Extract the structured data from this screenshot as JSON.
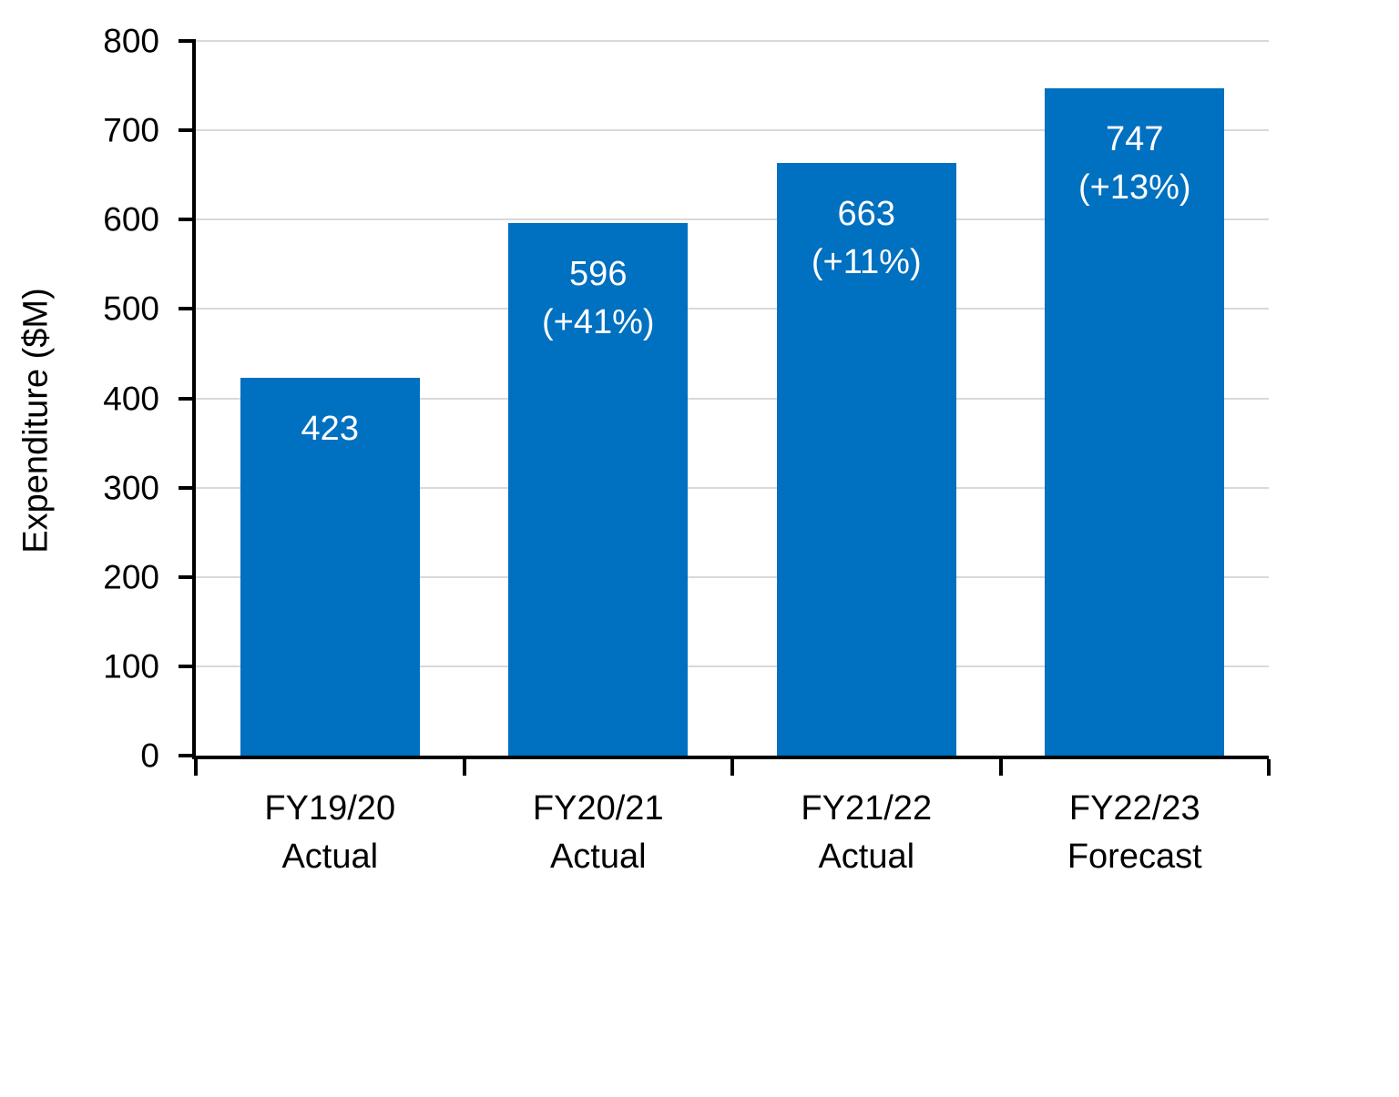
{
  "chart_data": {
    "type": "bar",
    "title": "",
    "xlabel": "",
    "ylabel": "Expenditure ($M)",
    "ylim": [
      0,
      800
    ],
    "yticks": [
      800,
      700,
      600,
      500,
      400,
      300,
      200,
      100,
      0
    ],
    "grid": true,
    "legend_position": "none",
    "categories": [
      "FY19/20 Actual",
      "FY20/21 Actual",
      "FY21/22 Actual",
      "FY22/23 Forecast"
    ],
    "values": [
      423,
      596,
      663,
      747
    ],
    "bars": [
      {
        "category_line1": "FY19/20",
        "category_line2": "Actual",
        "value": 423,
        "data_label_lines": [
          "423"
        ]
      },
      {
        "category_line1": "FY20/21",
        "category_line2": "Actual",
        "value": 596,
        "data_label_lines": [
          "596",
          "(+41%)"
        ]
      },
      {
        "category_line1": "FY21/22",
        "category_line2": "Actual",
        "value": 663,
        "data_label_lines": [
          "663",
          "(+11%)"
        ]
      },
      {
        "category_line1": "FY22/23",
        "category_line2": "Forecast",
        "value": 747,
        "data_label_lines": [
          "747",
          "(+13%)"
        ]
      }
    ],
    "colors": {
      "bar": "#0070C0",
      "gridline": "#D9D9D9",
      "axis": "#000000",
      "tick_label_text": "#000000",
      "data_label_text": "#FFFFFF"
    }
  }
}
